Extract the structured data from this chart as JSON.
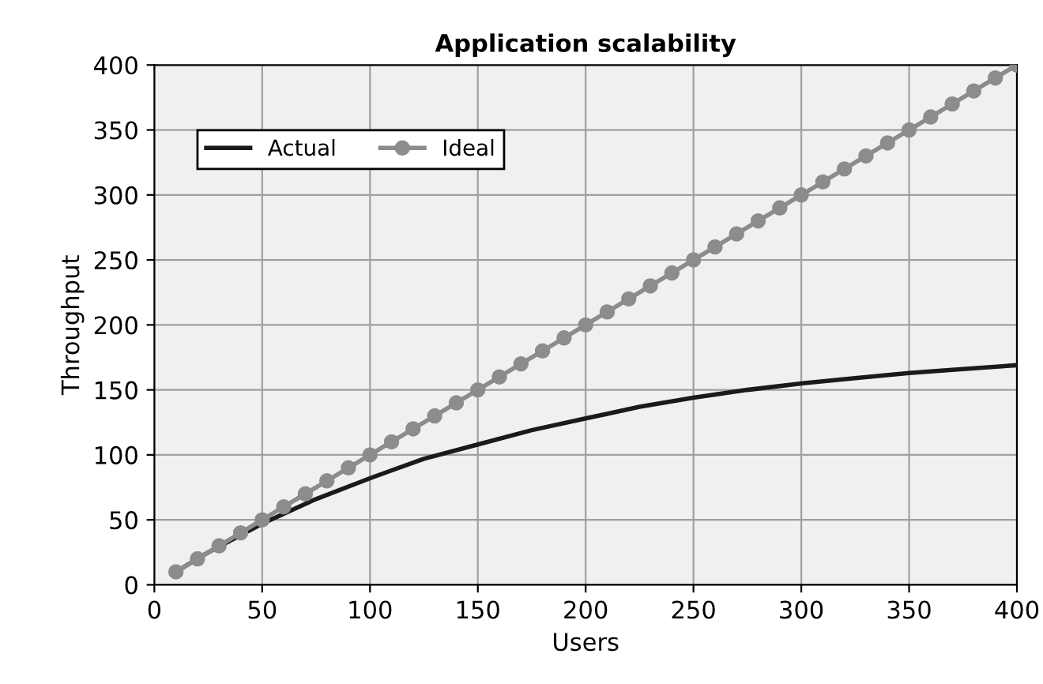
{
  "chart_data": {
    "type": "line",
    "title": "Application scalability",
    "xlabel": "Users",
    "ylabel": "Throughput",
    "xlim": [
      0,
      400
    ],
    "xticks": [
      0,
      50,
      100,
      150,
      200,
      250,
      300,
      350,
      400
    ],
    "ylim": [
      0,
      400
    ],
    "yticks": [
      0,
      50,
      100,
      150,
      200,
      250,
      300,
      350,
      400
    ],
    "grid": true,
    "legend": "top left",
    "series": [
      {
        "name": "Actual",
        "color": "#1a1a1a",
        "marker": "none",
        "x": [
          10,
          25,
          50,
          75,
          100,
          125,
          150,
          175,
          200,
          225,
          250,
          275,
          300,
          325,
          350,
          375,
          400
        ],
        "values": [
          10,
          25,
          47,
          66,
          82,
          97,
          108,
          119,
          128,
          137,
          144,
          150,
          155,
          159,
          163,
          166,
          169
        ]
      },
      {
        "name": "Ideal",
        "color": "#8c8c8c",
        "marker": "circle",
        "x": [
          10,
          20,
          30,
          40,
          50,
          60,
          70,
          80,
          90,
          100,
          110,
          120,
          130,
          140,
          150,
          160,
          170,
          180,
          190,
          200,
          210,
          220,
          230,
          240,
          250,
          260,
          270,
          280,
          290,
          300,
          310,
          320,
          330,
          340,
          350,
          360,
          370,
          380,
          390,
          400
        ],
        "values": [
          10,
          20,
          30,
          40,
          50,
          60,
          70,
          80,
          90,
          100,
          110,
          120,
          130,
          140,
          150,
          160,
          170,
          180,
          190,
          200,
          210,
          220,
          230,
          240,
          250,
          260,
          270,
          280,
          290,
          300,
          310,
          320,
          330,
          340,
          350,
          360,
          370,
          380,
          390,
          400
        ]
      }
    ]
  }
}
